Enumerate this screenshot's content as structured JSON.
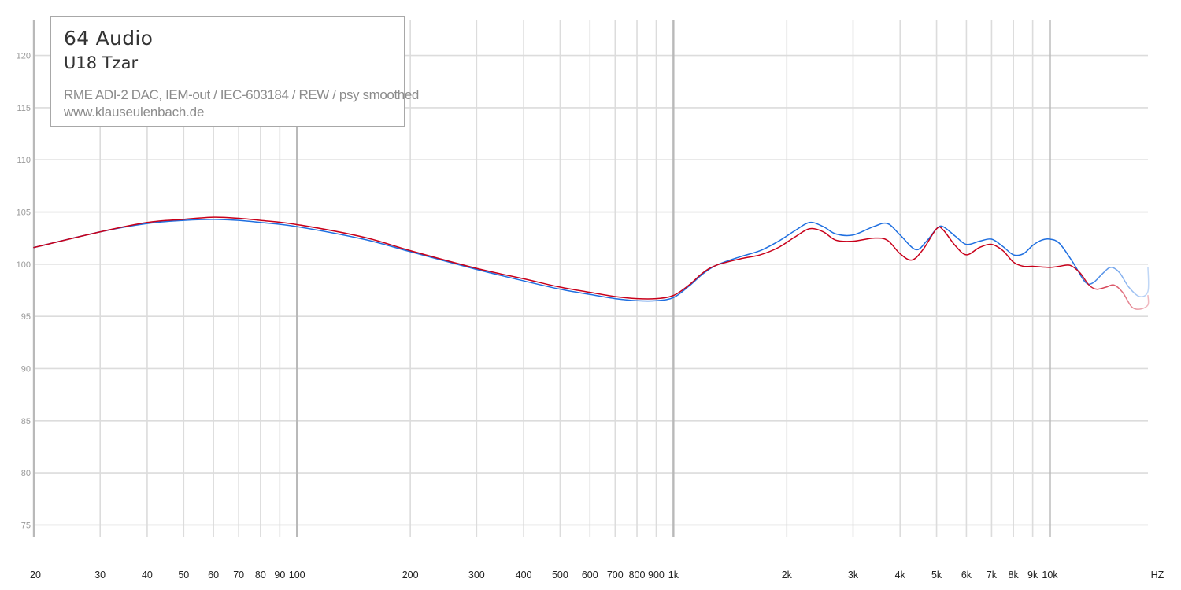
{
  "legend": {
    "brand": "64 Audio",
    "model": "U18 Tzar",
    "setup": "RME ADI-2 DAC, IEM-out / IEC-603184 / REW / psy smoothed",
    "website": "www.klauseulenbach.de"
  },
  "colors": {
    "series_left": "#1f6fe0",
    "series_right": "#c8001a",
    "grid": "#dcdcdc",
    "grid_major": "#b9b9b9"
  },
  "chart_data": {
    "type": "line",
    "title": "",
    "xlabel": "",
    "ylabel": "",
    "x_scale": "log",
    "xlim": [
      20,
      20000
    ],
    "ylim": [
      75,
      122
    ],
    "grid": true,
    "legend_position": "top-left",
    "x_unit_label": "HZ",
    "x_ticks": [
      {
        "value": 20,
        "label": "20"
      },
      {
        "value": 30,
        "label": "30"
      },
      {
        "value": 40,
        "label": "40"
      },
      {
        "value": 50,
        "label": "50"
      },
      {
        "value": 60,
        "label": "60"
      },
      {
        "value": 70,
        "label": "70"
      },
      {
        "value": 80,
        "label": "80"
      },
      {
        "value": 90,
        "label": "90"
      },
      {
        "value": 100,
        "label": "100"
      },
      {
        "value": 200,
        "label": "200"
      },
      {
        "value": 300,
        "label": "300"
      },
      {
        "value": 400,
        "label": "400"
      },
      {
        "value": 500,
        "label": "500"
      },
      {
        "value": 600,
        "label": "600"
      },
      {
        "value": 700,
        "label": "700"
      },
      {
        "value": 800,
        "label": "800"
      },
      {
        "value": 900,
        "label": "900"
      },
      {
        "value": 1000,
        "label": "1k"
      },
      {
        "value": 2000,
        "label": "2k"
      },
      {
        "value": 3000,
        "label": "3k"
      },
      {
        "value": 4000,
        "label": "4k"
      },
      {
        "value": 5000,
        "label": "5k"
      },
      {
        "value": 6000,
        "label": "6k"
      },
      {
        "value": 7000,
        "label": "7k"
      },
      {
        "value": 8000,
        "label": "8k"
      },
      {
        "value": 9000,
        "label": "9k"
      },
      {
        "value": 10000,
        "label": "10k"
      }
    ],
    "y_ticks": [
      75,
      80,
      85,
      90,
      95,
      100,
      105,
      110,
      115,
      120
    ],
    "series": [
      {
        "color": "#1f6fe0",
        "points": [
          [
            20,
            101.6
          ],
          [
            30,
            103.1
          ],
          [
            40,
            103.9
          ],
          [
            50,
            104.2
          ],
          [
            60,
            104.3
          ],
          [
            70,
            104.2
          ],
          [
            80,
            104.0
          ],
          [
            100,
            103.6
          ],
          [
            150,
            102.4
          ],
          [
            200,
            101.2
          ],
          [
            300,
            99.5
          ],
          [
            400,
            98.4
          ],
          [
            500,
            97.6
          ],
          [
            600,
            97.1
          ],
          [
            700,
            96.7
          ],
          [
            800,
            96.5
          ],
          [
            900,
            96.5
          ],
          [
            1000,
            96.8
          ],
          [
            1100,
            97.9
          ],
          [
            1200,
            99.1
          ],
          [
            1300,
            99.9
          ],
          [
            1500,
            100.7
          ],
          [
            1700,
            101.3
          ],
          [
            1900,
            102.2
          ],
          [
            2100,
            103.2
          ],
          [
            2300,
            104.0
          ],
          [
            2500,
            103.6
          ],
          [
            2700,
            102.9
          ],
          [
            3000,
            102.8
          ],
          [
            3400,
            103.6
          ],
          [
            3700,
            103.9
          ],
          [
            4000,
            102.8
          ],
          [
            4400,
            101.4
          ],
          [
            4700,
            102.2
          ],
          [
            5000,
            103.4
          ],
          [
            5200,
            103.6
          ],
          [
            5600,
            102.7
          ],
          [
            6000,
            101.9
          ],
          [
            6500,
            102.2
          ],
          [
            7000,
            102.4
          ],
          [
            7500,
            101.7
          ],
          [
            8000,
            100.9
          ],
          [
            8500,
            101.0
          ],
          [
            9000,
            101.8
          ],
          [
            9500,
            102.3
          ],
          [
            10000,
            102.4
          ],
          [
            10600,
            102.0
          ],
          [
            11500,
            100.2
          ],
          [
            12400,
            98.3
          ],
          [
            13000,
            98.2
          ],
          [
            13800,
            99.1
          ],
          [
            14500,
            99.7
          ],
          [
            15300,
            99.2
          ],
          [
            16200,
            97.8
          ],
          [
            17300,
            96.9
          ],
          [
            18500,
            97.4
          ],
          [
            20000,
            99.7
          ]
        ]
      },
      {
        "color": "#c8001a",
        "points": [
          [
            20,
            101.6
          ],
          [
            30,
            103.1
          ],
          [
            40,
            104.0
          ],
          [
            50,
            104.3
          ],
          [
            60,
            104.5
          ],
          [
            70,
            104.4
          ],
          [
            80,
            104.2
          ],
          [
            100,
            103.8
          ],
          [
            150,
            102.6
          ],
          [
            200,
            101.3
          ],
          [
            300,
            99.6
          ],
          [
            400,
            98.6
          ],
          [
            500,
            97.8
          ],
          [
            600,
            97.3
          ],
          [
            700,
            96.9
          ],
          [
            800,
            96.7
          ],
          [
            900,
            96.7
          ],
          [
            1000,
            97.0
          ],
          [
            1100,
            98.0
          ],
          [
            1200,
            99.2
          ],
          [
            1300,
            99.9
          ],
          [
            1500,
            100.5
          ],
          [
            1700,
            100.9
          ],
          [
            1900,
            101.6
          ],
          [
            2100,
            102.6
          ],
          [
            2300,
            103.4
          ],
          [
            2500,
            103.1
          ],
          [
            2700,
            102.3
          ],
          [
            3000,
            102.2
          ],
          [
            3400,
            102.5
          ],
          [
            3700,
            102.3
          ],
          [
            4000,
            101.0
          ],
          [
            4300,
            100.4
          ],
          [
            4600,
            101.4
          ],
          [
            5000,
            103.4
          ],
          [
            5200,
            103.3
          ],
          [
            5600,
            101.8
          ],
          [
            6000,
            100.9
          ],
          [
            6500,
            101.6
          ],
          [
            7000,
            101.9
          ],
          [
            7500,
            101.3
          ],
          [
            8000,
            100.2
          ],
          [
            8500,
            99.8
          ],
          [
            9000,
            99.8
          ],
          [
            10000,
            99.7
          ],
          [
            10600,
            99.8
          ],
          [
            11300,
            99.9
          ],
          [
            12000,
            99.2
          ],
          [
            12700,
            98.0
          ],
          [
            13300,
            97.6
          ],
          [
            14100,
            97.8
          ],
          [
            14800,
            98.0
          ],
          [
            15600,
            97.3
          ],
          [
            16500,
            95.9
          ],
          [
            17400,
            95.7
          ],
          [
            18600,
            96.1
          ],
          [
            20000,
            97.0
          ]
        ]
      }
    ]
  }
}
